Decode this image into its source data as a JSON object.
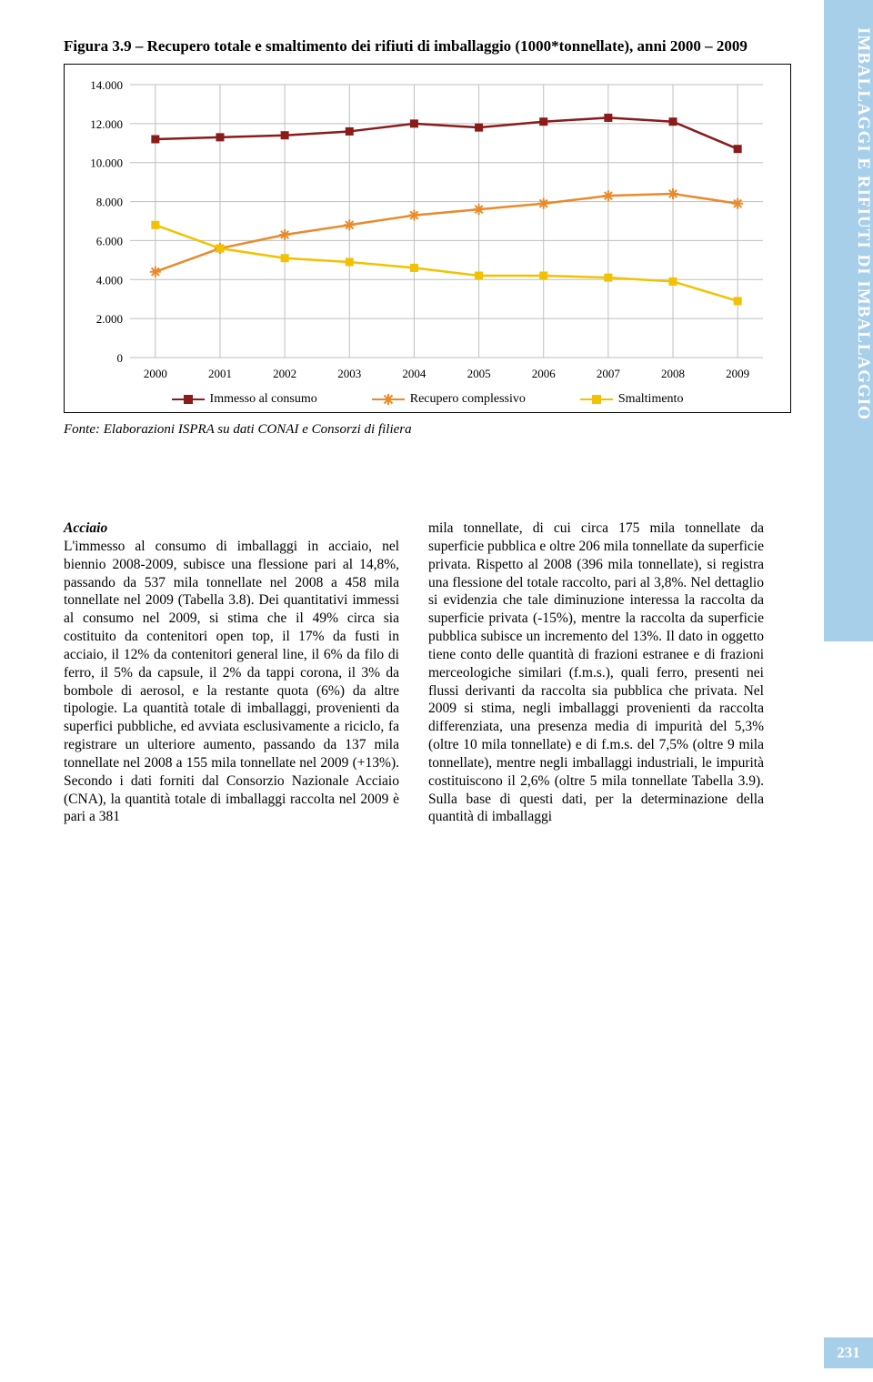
{
  "sidebar_label": "IMBALLAGGI E RIFIUTI DI IMBALLAGGIO",
  "page_number": "231",
  "figure_title": "Figura 3.9 – Recupero totale e smaltimento dei rifiuti di imballaggio (1000*tonnellate), anni 2000 – 2009",
  "source_line": "Fonte: Elaborazioni ISPRA su dati CONAI e Consorzi di filiera",
  "chart": {
    "type": "line",
    "x_categories": [
      "2000",
      "2001",
      "2002",
      "2003",
      "2004",
      "2005",
      "2006",
      "2007",
      "2008",
      "2009"
    ],
    "y_ticks": [
      "0",
      "2.000",
      "4.000",
      "6.000",
      "8.000",
      "10.000",
      "12.000",
      "14.000"
    ],
    "ylim": [
      0,
      14000
    ],
    "ytick_step": 2000,
    "grid_color": "#bfbfbf",
    "background_color": "#ffffff",
    "series": [
      {
        "name": "Immesso al consumo",
        "color": "#8a1b1b",
        "marker": "square",
        "values": [
          11200,
          11300,
          11400,
          11600,
          12000,
          11800,
          12100,
          12300,
          12100,
          10700
        ]
      },
      {
        "name": "Recupero complessivo",
        "color": "#e98a2b",
        "marker": "asterisk",
        "values": [
          4400,
          5600,
          6300,
          6800,
          7300,
          7600,
          7900,
          8300,
          8400,
          7900
        ]
      },
      {
        "name": "Smaltimento",
        "color": "#f2c200",
        "marker": "square",
        "values": [
          6800,
          5600,
          5100,
          4900,
          4600,
          4200,
          4200,
          4100,
          3900,
          2900
        ]
      }
    ],
    "line_width": 2.5,
    "marker_size": 9,
    "label_fontsize": 13
  },
  "legend": {
    "immesso": "Immesso al consumo",
    "recupero": "Recupero complessivo",
    "smaltimento": "Smaltimento"
  },
  "col_left": {
    "heading": "Acciaio",
    "p1": "L'immesso al consumo di imballaggi in acciaio, nel biennio 2008-2009, subisce una flessione pari al 14,8%, passando da 537 mila tonnellate nel 2008 a 458 mila tonnellate nel 2009 (Tabella 3.8).",
    "p2": "Dei quantitativi immessi al consumo nel 2009, si stima che il 49% circa sia costituito da contenitori open top, il 17% da fusti in acciaio, il 12% da contenitori general line, il 6% da filo di ferro, il 5% da capsule, il 2% da tappi corona, il 3% da bombole di aerosol, e la restante quota (6%) da altre tipologie.",
    "p3": "La quantità totale di imballaggi, provenienti da superfici pubbliche, ed avviata esclusivamente a riciclo, fa registrare un ulteriore aumento, passando da 137 mila tonnellate nel 2008 a 155 mila tonnellate nel 2009 (+13%).",
    "p4": "Secondo i dati forniti dal Consorzio Nazionale Acciaio (CNA), la quantità totale di imballaggi raccolta nel 2009 è pari a 381"
  },
  "col_right": {
    "p1": "mila tonnellate, di cui circa 175 mila tonnellate da superficie pubblica e oltre 206 mila tonnellate da superficie privata. Rispetto al 2008 (396 mila tonnellate), si registra una flessione del totale raccolto, pari al 3,8%. Nel dettaglio si evidenzia che tale diminuzione interessa la raccolta da superficie privata (-15%), mentre la raccolta da superficie pubblica subisce un incremento del 13%.",
    "p2": "Il dato in oggetto tiene conto delle quantità di frazioni estranee e di frazioni merceologiche similari (f.m.s.), quali ferro, presenti nei flussi derivanti da raccolta sia pubblica che privata.",
    "p3": "Nel 2009 si stima, negli imballaggi provenienti da raccolta differenziata, una presenza media di impurità del 5,3% (oltre 10 mila tonnellate) e di f.m.s. del 7,5% (oltre 9 mila tonnellate), mentre negli imballaggi industriali, le impurità costituiscono il 2,6% (oltre 5 mila tonnellate Tabella 3.9).",
    "p4": "Sulla base di questi dati, per la determinazione della quantità di imballaggi"
  }
}
